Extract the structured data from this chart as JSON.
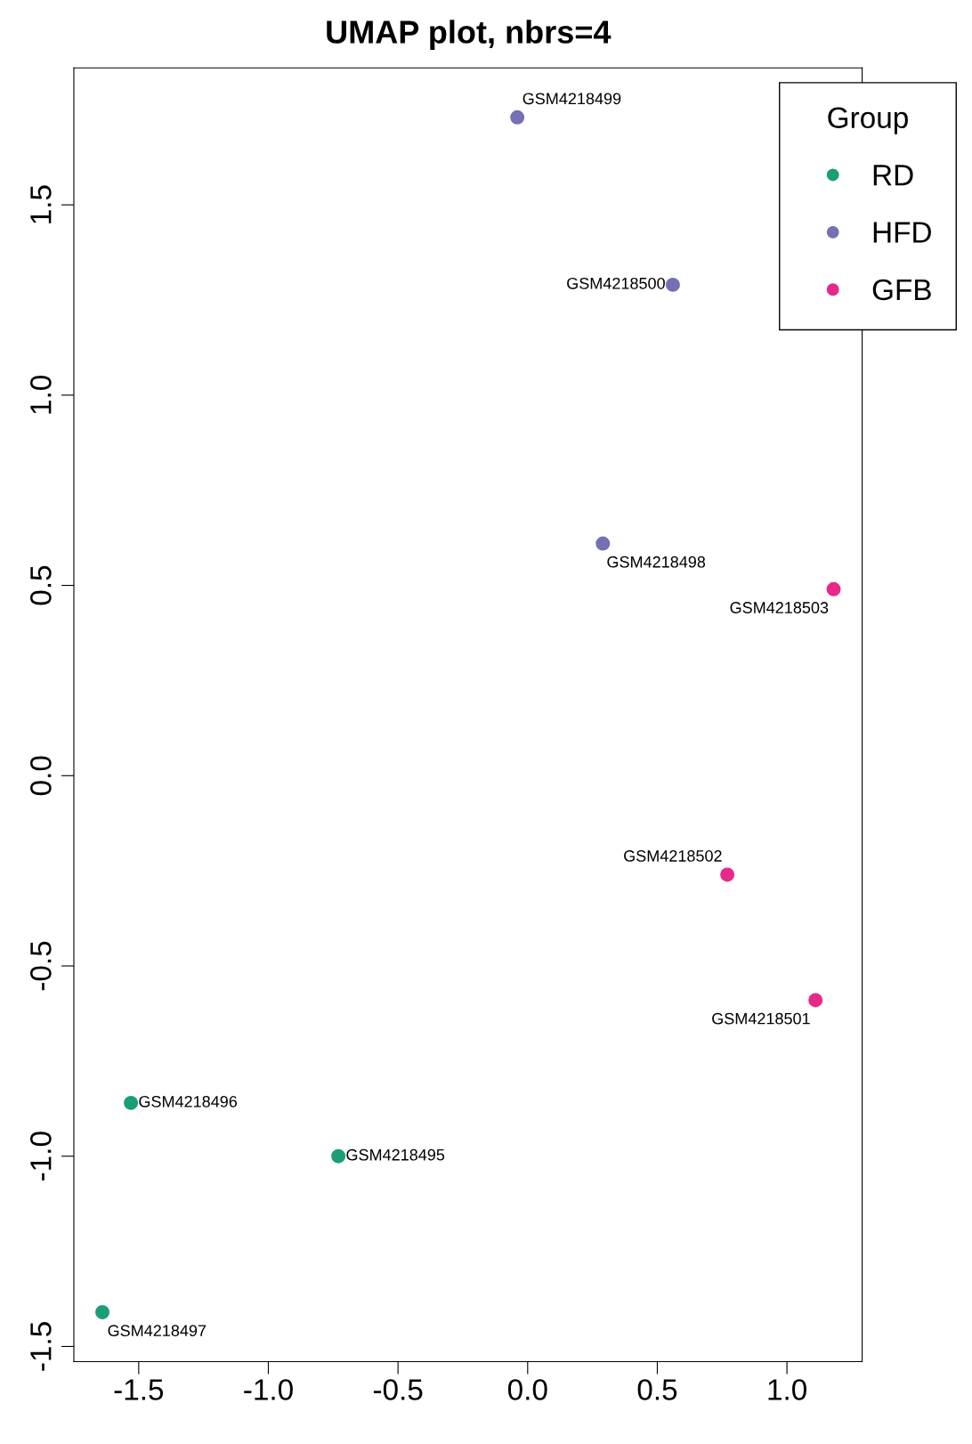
{
  "chart_data": {
    "type": "scatter",
    "title": "UMAP plot, nbrs=4",
    "legend_title": "Group",
    "legend": "top right",
    "grid": false,
    "marker": "circle",
    "xlim": [
      -1.75,
      1.29
    ],
    "ylim": [
      -1.54,
      1.86
    ],
    "xticks": [
      -1.5,
      {
        "value": -1.0,
        "label": "-1.0"
      },
      -0.5,
      {
        "value": 0.0,
        "label": "0.0"
      },
      0.5,
      {
        "value": 1.0,
        "label": "1.0"
      }
    ],
    "yticks": [
      -1.5,
      {
        "value": -1.0,
        "label": "-1.0"
      },
      -0.5,
      {
        "value": 0.0,
        "label": "0.0"
      },
      0.5,
      {
        "value": 1.0,
        "label": "1.0"
      },
      1.5
    ],
    "series": [
      {
        "name": "RD",
        "color": "#1b9e77",
        "x": [
          -1.53,
          -0.73,
          -1.64
        ],
        "values": [
          -0.86,
          -1.0,
          -1.41
        ]
      },
      {
        "name": "HFD",
        "color": "#7570b3",
        "x": [
          -0.04,
          0.56,
          0.29
        ],
        "values": [
          1.73,
          1.29,
          0.61
        ]
      },
      {
        "name": "GFB",
        "color": "#e7298a",
        "x": [
          1.18,
          0.77,
          1.11
        ],
        "values": [
          0.49,
          -0.26,
          -0.59
        ]
      }
    ],
    "annotations": [
      {
        "text": "GSM4218496",
        "x": -1.53,
        "y": -0.86
      },
      {
        "text": "GSM4218495",
        "x": -0.73,
        "y": -1.0
      },
      {
        "text": "GSM4218497",
        "x": -1.64,
        "y": -1.41
      },
      {
        "text": "GSM4218499",
        "x": -0.04,
        "y": 1.73
      },
      {
        "text": "GSM4218500",
        "x": 0.56,
        "y": 1.29
      },
      {
        "text": "GSM4218498",
        "x": 0.29,
        "y": 0.61
      },
      {
        "text": "GSM4218503",
        "x": 1.18,
        "y": 0.49
      },
      {
        "text": "GSM4218502",
        "x": 0.77,
        "y": -0.26
      },
      {
        "text": "GSM4218501",
        "x": 1.11,
        "y": -0.59
      }
    ]
  }
}
